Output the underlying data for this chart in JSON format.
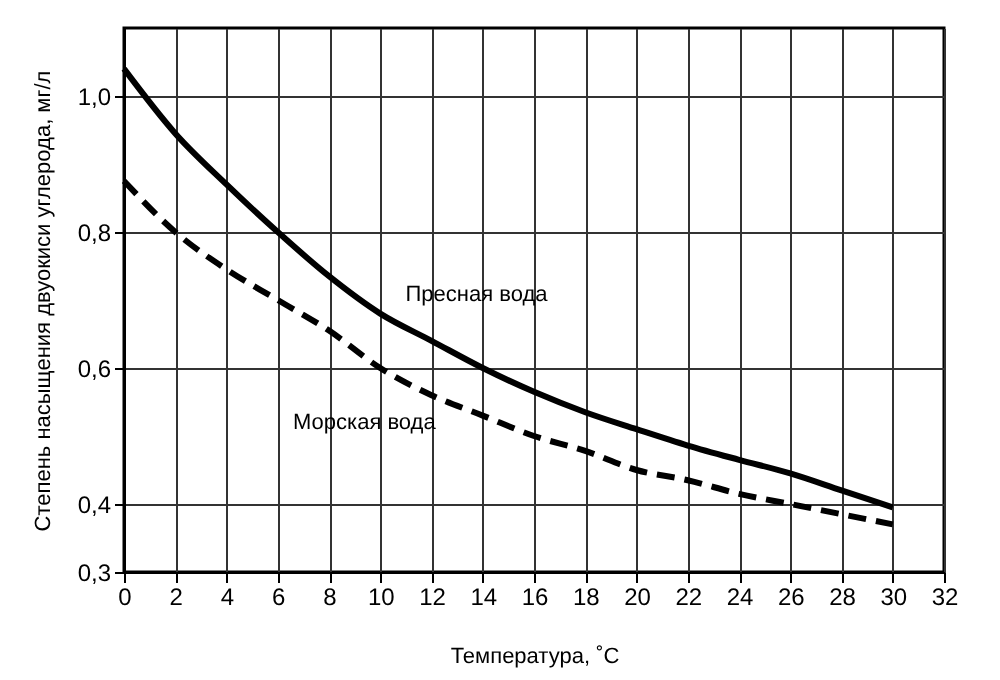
{
  "chart_data": {
    "type": "line",
    "xlabel": "Температура, ˚С",
    "ylabel": "Степень насыщения двуокиси углерода, мг/л",
    "x": [
      0,
      2,
      4,
      6,
      8,
      10,
      12,
      14,
      16,
      18,
      20,
      22,
      24,
      26,
      28,
      30
    ],
    "series": [
      {
        "name": "Пресная вода",
        "color": "#000000",
        "line_style": "solid",
        "values": [
          1.04,
          0.945,
          0.87,
          0.8,
          0.735,
          0.68,
          0.64,
          0.6,
          0.565,
          0.535,
          0.51,
          0.486,
          0.465,
          0.445,
          0.42,
          0.395
        ]
      },
      {
        "name": "Морская вода",
        "color": "#000000",
        "line_style": "dashed",
        "values": [
          0.875,
          0.8,
          0.745,
          0.7,
          0.655,
          0.6,
          0.56,
          0.53,
          0.5,
          0.478,
          0.45,
          0.435,
          0.415,
          0.4,
          0.385,
          0.37
        ]
      }
    ],
    "xlim": [
      0,
      32
    ],
    "xticks": [
      0,
      2,
      4,
      6,
      8,
      10,
      12,
      14,
      16,
      18,
      20,
      22,
      24,
      26,
      28,
      30,
      32
    ],
    "ylim": [
      0.3,
      1.1
    ],
    "yticks": [
      {
        "value": 0.3,
        "label": "0,3"
      },
      {
        "value": 0.4,
        "label": "0,4"
      },
      {
        "value": 0.6,
        "label": "0,6"
      },
      {
        "value": 0.8,
        "label": "0,8"
      },
      {
        "value": 1.0,
        "label": "1,0"
      }
    ],
    "grid": true,
    "legend": false,
    "marker": "none"
  }
}
